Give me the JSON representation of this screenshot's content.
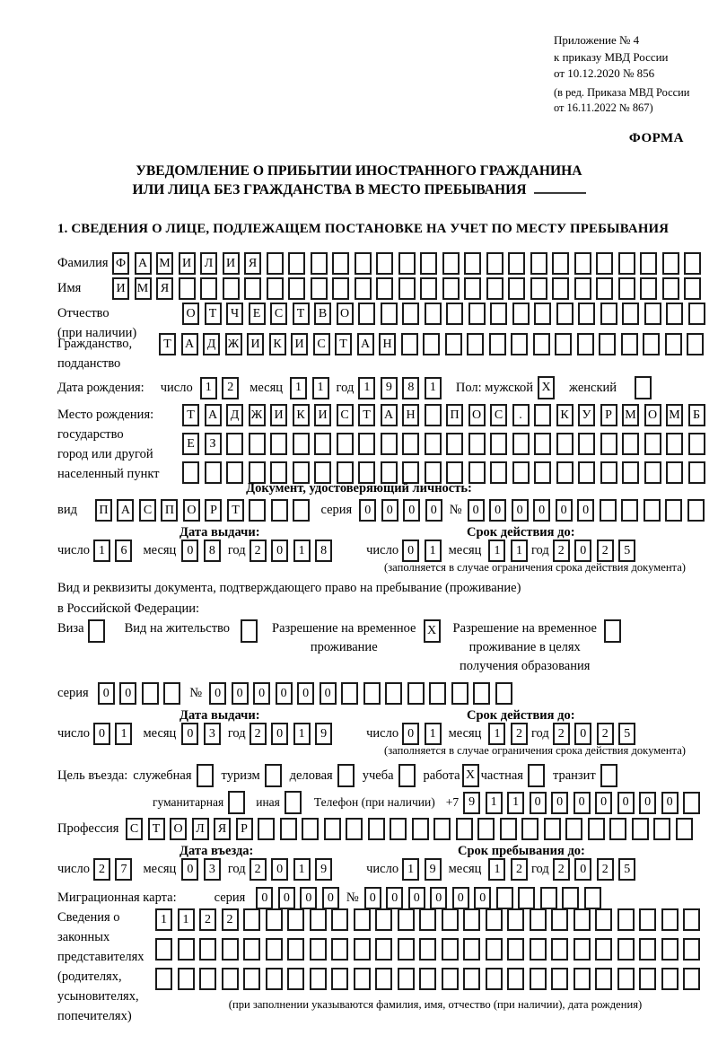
{
  "header": {
    "annex_lines": [
      "Приложение № 4",
      "к приказу МВД России",
      "от 10.12.2020 № 856"
    ],
    "edition_lines": [
      "(в ред. Приказа МВД России",
      "от 16.11.2022 № 867)"
    ],
    "forma": "ФОРМА",
    "title_line1": "УВЕДОМЛЕНИЕ О ПРИБЫТИИ ИНОСТРАННОГО ГРАЖДАНИНА",
    "title_line2": "ИЛИ ЛИЦА БЕЗ ГРАЖДАНСТВА В МЕСТО ПРЕБЫВАНИЯ",
    "section_title": "1. СВЕДЕНИЯ О ЛИЦЕ, ПОДЛЕЖАЩЕМ ПОСТАНОВКЕ НА УЧЕТ ПО МЕСТУ ПРЕБЫВАНИЯ"
  },
  "date_labels": {
    "day": "число",
    "month": "месяц",
    "year": "год"
  },
  "person": {
    "surname": {
      "label": "Фамилия",
      "value": "ФАМИЛИЯ"
    },
    "given_name": {
      "label": "Имя",
      "value": "ИМЯ"
    },
    "patronymic": {
      "label": "Отчество",
      "label2": "(при наличии)",
      "value": "ОТЧЕСТВО"
    },
    "citizenship": {
      "label": "Гражданство,",
      "label2": "подданство",
      "value": "ТАДЖИКИСТАН"
    },
    "birth_date": {
      "label": "Дата рождения:",
      "day": "12",
      "month": "11",
      "year": "1981"
    },
    "sex": {
      "label": "Пол: мужской",
      "male_mark": "X",
      "female_label": "женский",
      "female_mark": ""
    },
    "birth_place": {
      "label_lines": [
        "Место рождения:",
        "государство",
        "город или другой",
        "населенный пункт"
      ],
      "rows": [
        "ТАДЖИКИСТАН ПОС. КУРМОМБ",
        "ЕЗ",
        ""
      ]
    }
  },
  "identity_doc": {
    "header": "Документ, удостоверяющий личность:",
    "kind_label": "вид",
    "kind": "ПАСПОРТ",
    "series_label": "серия",
    "series": "0000",
    "number_label": "№",
    "number": "000000",
    "issue": {
      "title": "Дата выдачи:",
      "day": "16",
      "month": "08",
      "year": "2018"
    },
    "valid": {
      "title": "Срок действия до:",
      "day": "01",
      "month": "11",
      "year": "2025"
    },
    "note": "(заполняется в случае ограничения срока действия документа)"
  },
  "residence_doc": {
    "line1": "Вид и реквизиты документа, подтверждающего право на пребывание (проживание)",
    "line2": "в Российской Федерации:",
    "visa": {
      "label": "Виза",
      "mark": ""
    },
    "residence_permit": {
      "label": "Вид на жительство",
      "mark": ""
    },
    "rvp": {
      "lines": [
        "Разрешение на временное",
        "проживание"
      ],
      "mark": "X"
    },
    "rvp_edu": {
      "lines": [
        "Разрешение на временное",
        "проживание в целях",
        "получения образования"
      ],
      "mark": ""
    },
    "series_label": "серия",
    "series": "00",
    "number_label": "№",
    "number": "000000",
    "issue": {
      "title": "Дата выдачи:",
      "day": "01",
      "month": "03",
      "year": "2019"
    },
    "valid": {
      "title": "Срок действия до:",
      "day": "01",
      "month": "12",
      "year": "2025"
    },
    "note": "(заполняется в случае ограничения срока действия документа)"
  },
  "purpose": {
    "label": "Цель въезда:",
    "options": [
      {
        "label": "служебная",
        "mark": ""
      },
      {
        "label": "туризм",
        "mark": ""
      },
      {
        "label": "деловая",
        "mark": ""
      },
      {
        "label": "учеба",
        "mark": ""
      },
      {
        "label": "работа",
        "mark": "X"
      },
      {
        "label": "частная",
        "mark": ""
      },
      {
        "label": "транзит",
        "mark": ""
      },
      {
        "label": "гуманитарная",
        "mark": ""
      },
      {
        "label": "иная",
        "mark": ""
      }
    ],
    "phone_label": "Телефон (при наличии)",
    "phone_prefix": "+7",
    "phone": "9110000000"
  },
  "profession": {
    "label": "Профессия",
    "value": "СТОЛЯР"
  },
  "entry": {
    "date": {
      "title": "Дата въезда:",
      "day": "27",
      "month": "03",
      "year": "2019"
    },
    "stay": {
      "title": "Срок пребывания до:",
      "day": "19",
      "month": "12",
      "year": "2025"
    }
  },
  "migration_card": {
    "label": "Миграционная карта:",
    "series_label": "серия",
    "series": "0000",
    "number_label": "№",
    "number": "000000"
  },
  "representatives": {
    "label_lines": [
      "Сведения о",
      "законных",
      "представителях",
      "(родителях,",
      "усыновителях,",
      "попечителях)"
    ],
    "rows": [
      "1122",
      "",
      ""
    ],
    "note": "(при заполнении указываются фамилия, имя, отчество (при наличии), дата рождения)"
  }
}
